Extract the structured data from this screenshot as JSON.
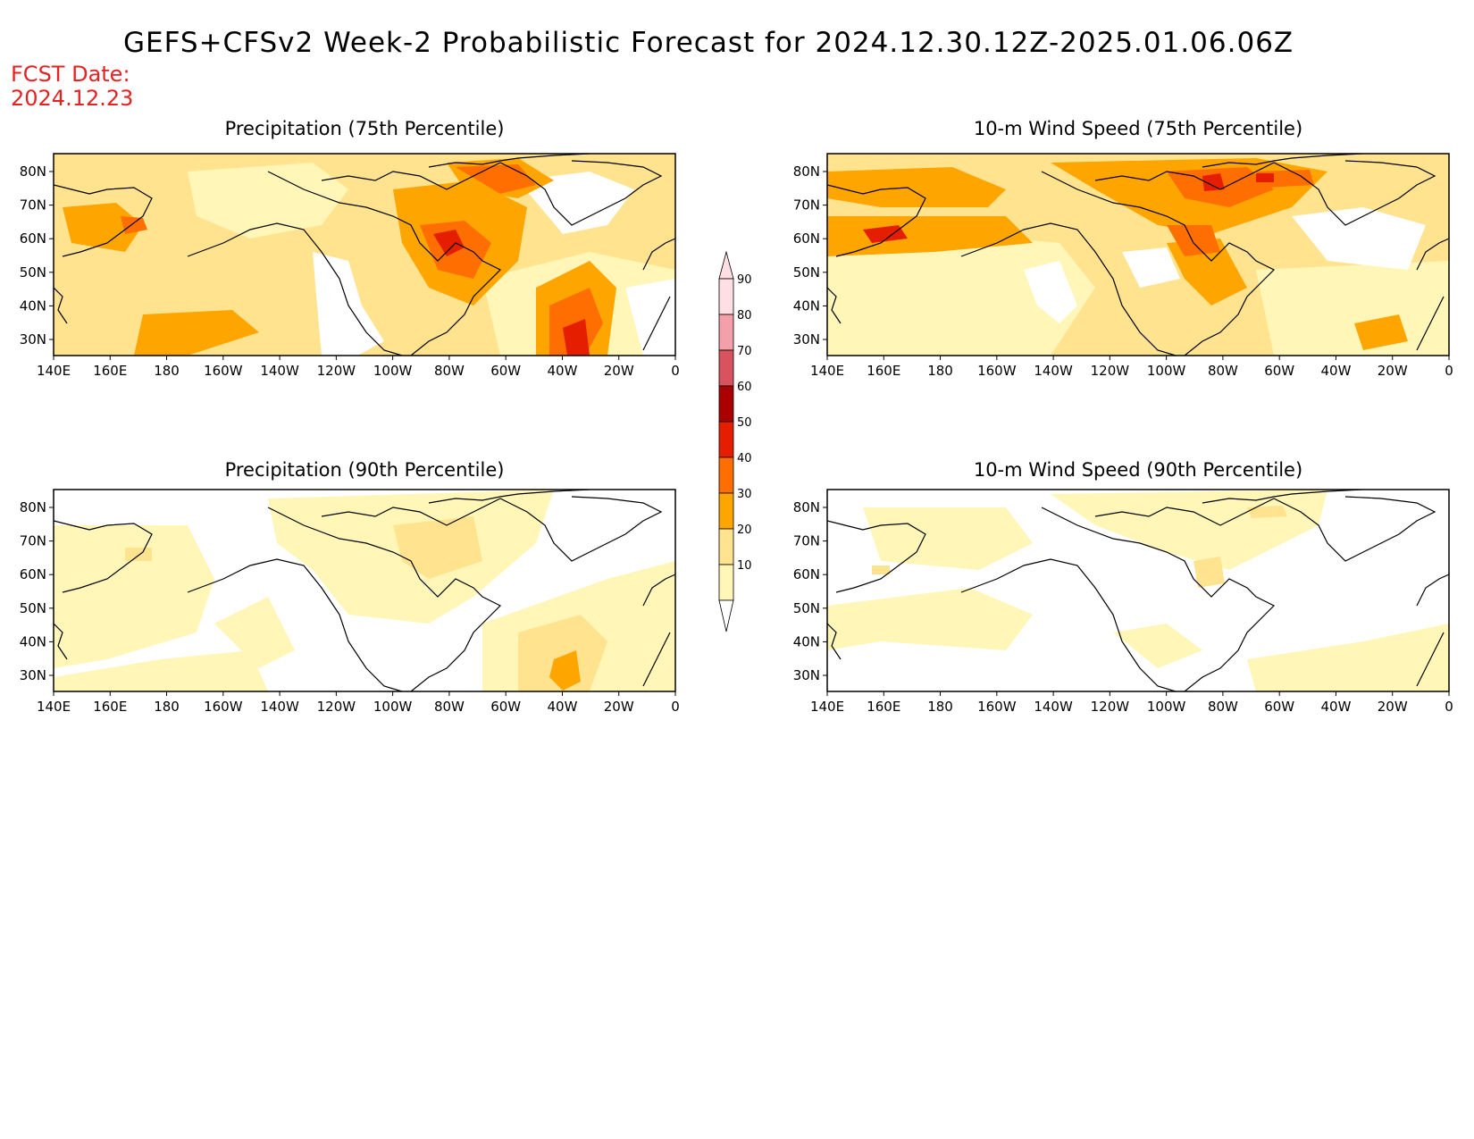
{
  "title": "GEFS+CFSv2 Week-2 Probabilistic Forecast for 2024.12.30.12Z-2025.01.06.06Z",
  "fcst_date": {
    "label": "FCST Date:",
    "value": "2024.12.23"
  },
  "colors": {
    "c10": "#fff6b8",
    "c20": "#ffe38f",
    "c30": "#ffa500",
    "c40": "#ff6e00",
    "c50": "#e61e00",
    "c60": "#aa0000",
    "c70": "#d9535e",
    "c80": "#f3a0aa",
    "c90": "#ffdfe4",
    "coast": "#000000"
  },
  "x_ticks": [
    "140E",
    "160E",
    "180",
    "160W",
    "140W",
    "120W",
    "100W",
    "80W",
    "60W",
    "40W",
    "20W",
    "0"
  ],
  "y_ticks": [
    "80N",
    "70N",
    "60N",
    "50N",
    "40N",
    "30N"
  ],
  "colorbar": {
    "levels": [
      "90",
      "80",
      "70",
      "60",
      "50",
      "40",
      "30",
      "20",
      "10"
    ]
  },
  "panels": [
    {
      "id": "precip-75",
      "title": "Precipitation (75th Percentile)"
    },
    {
      "id": "wind-75",
      "title": "10-m Wind Speed (75th Percentile)"
    },
    {
      "id": "precip-90",
      "title": "Precipitation (90th Percentile)"
    },
    {
      "id": "wind-90",
      "title": "10-m Wind Speed (90th Percentile)"
    }
  ]
}
